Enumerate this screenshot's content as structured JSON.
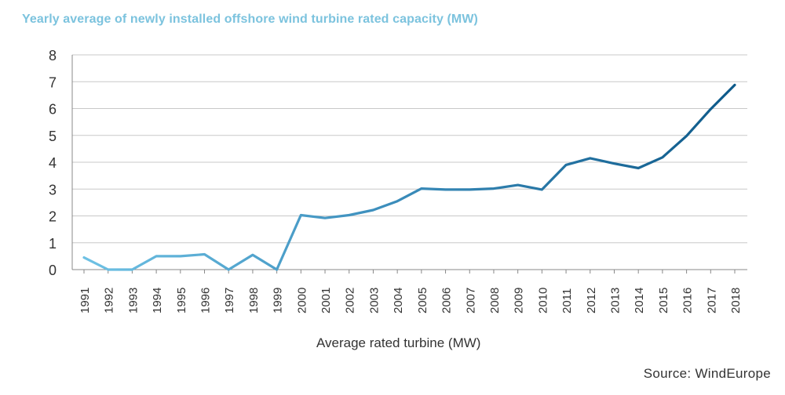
{
  "chart_data": {
    "type": "line",
    "title": "Yearly average of newly installed offshore wind turbine rated capacity (MW)",
    "xlabel": "",
    "ylabel": "",
    "ylim": [
      0,
      8
    ],
    "yticks": [
      "0",
      "1",
      "2",
      "3",
      "4",
      "5",
      "6",
      "7",
      "8"
    ],
    "categories": [
      "1991",
      "1992",
      "1993",
      "1994",
      "1995",
      "1996",
      "1997",
      "1998",
      "1999",
      "2000",
      "2001",
      "2002",
      "2003",
      "2004",
      "2005",
      "2006",
      "2007",
      "2008",
      "2009",
      "2010",
      "2011",
      "2012",
      "2013",
      "2014",
      "2015",
      "2016",
      "2017",
      "2018"
    ],
    "series": [
      {
        "name": "Average rated turbine (MW)",
        "values": [
          0.45,
          0.0,
          0.0,
          0.5,
          0.5,
          0.57,
          0.0,
          0.55,
          0.0,
          2.03,
          1.92,
          2.03,
          2.22,
          2.55,
          3.02,
          2.98,
          2.98,
          3.02,
          3.15,
          2.98,
          3.9,
          4.15,
          3.95,
          3.78,
          4.18,
          4.98,
          5.98,
          6.88
        ]
      }
    ],
    "grid": true,
    "legend_position": "bottom-center",
    "colors": {
      "line_start": "#6ec1e4",
      "line_end": "#0e5a8a",
      "grid": "#c8c8c8",
      "axis": "#888888",
      "tick_text": "#333333"
    },
    "source": "Source: WindEurope"
  }
}
